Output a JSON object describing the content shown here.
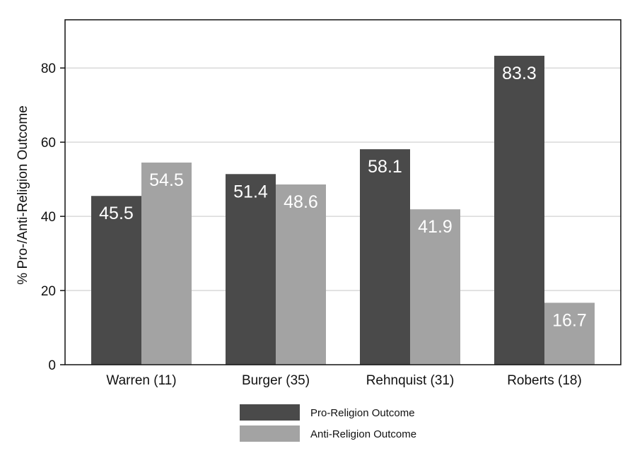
{
  "chart_data": {
    "type": "bar",
    "title": "",
    "xlabel": "",
    "ylabel": "% Pro-/Anti-Religion Outcome",
    "ylim": [
      0,
      93
    ],
    "yticks": [
      0,
      20,
      40,
      60,
      80
    ],
    "grid": true,
    "legend_position": "bottom",
    "categories": [
      "Warren (11)",
      "Burger (35)",
      "Rehnquist (31)",
      "Roberts (18)"
    ],
    "series": [
      {
        "name": "Pro-Religion Outcome",
        "color": "#4a4a4a",
        "values": [
          45.5,
          51.4,
          58.1,
          83.3
        ],
        "labels": [
          "45.5",
          "51.4",
          "58.1",
          "83.3"
        ]
      },
      {
        "name": "Anti-Religion Outcome",
        "color": "#a3a3a3",
        "values": [
          54.5,
          48.6,
          41.9,
          16.7
        ],
        "labels": [
          "54.5",
          "48.6",
          "41.9",
          "16.7"
        ]
      }
    ]
  }
}
